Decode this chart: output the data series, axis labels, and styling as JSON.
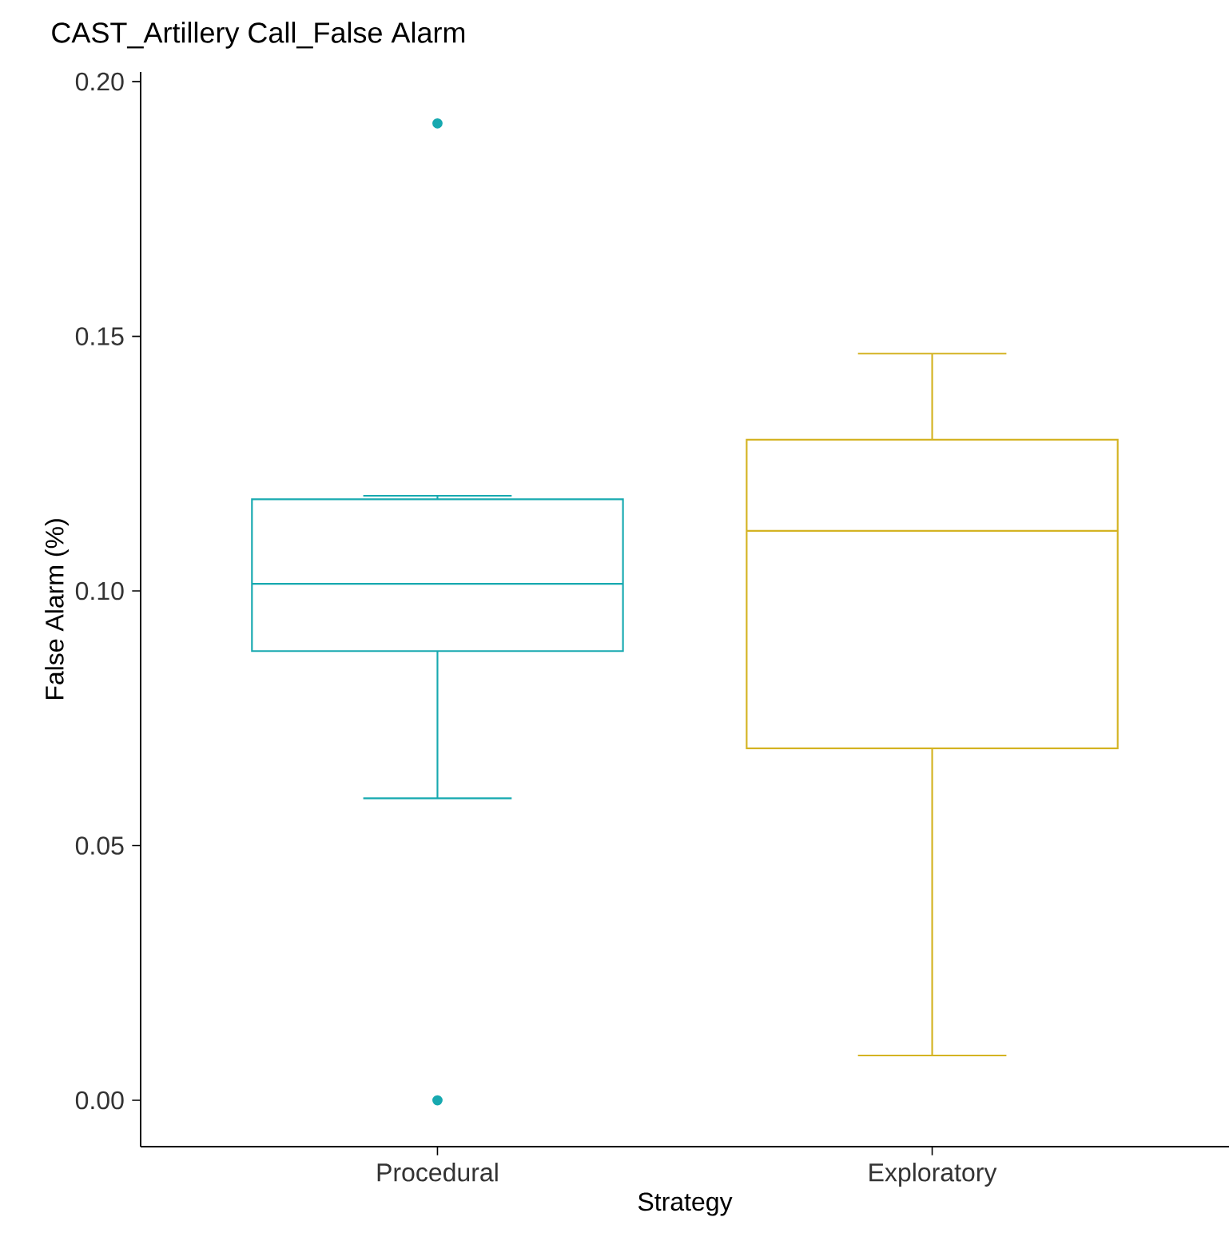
{
  "chart_data": {
    "type": "box",
    "title": "CAST_Artillery Call_False Alarm",
    "xlabel": "Strategy",
    "ylabel": "False Alarm (%)",
    "categories": [
      "Procedural",
      "Exploratory"
    ],
    "colors": [
      "#17a9b0",
      "#d4b322"
    ],
    "boxes": [
      {
        "low": 0.0593,
        "q1": 0.0882,
        "median": 0.1014,
        "q3": 0.118,
        "high": 0.1187,
        "outliers": [
          0.1918,
          0.0
        ]
      },
      {
        "low": 0.0088,
        "q1": 0.0691,
        "median": 0.1118,
        "q3": 0.1297,
        "high": 0.1466
      }
    ],
    "ylim": [
      -0.0091,
      0.2019
    ],
    "yticks": [
      {
        "value": 0,
        "label": "0.00"
      },
      0.05,
      {
        "value": 0.1,
        "label": "0.10"
      },
      0.15,
      {
        "value": 0.2,
        "label": "0.20"
      }
    ],
    "grid": false
  }
}
